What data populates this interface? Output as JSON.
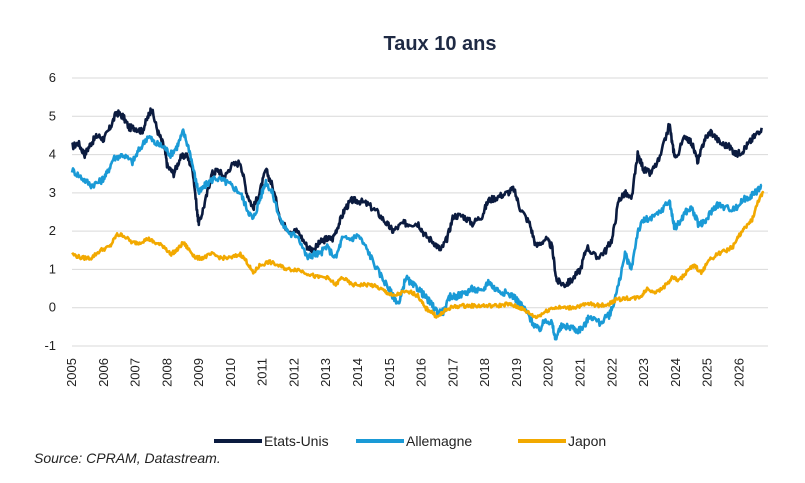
{
  "chart_data": {
    "type": "line",
    "title": "Taux 10 ans",
    "xlabel": "",
    "ylabel": "",
    "xlim": [
      2005.0,
      2026.9
    ],
    "ylim": [
      -1,
      6
    ],
    "yticks": [
      -1,
      0,
      1,
      2,
      3,
      4,
      5,
      6
    ],
    "xticks": [
      "2005",
      "2006",
      "2007",
      "2008",
      "2009",
      "2010",
      "2011",
      "2012",
      "2013",
      "2014",
      "2015",
      "2016",
      "2017",
      "2018",
      "2019",
      "2020",
      "2021",
      "2022",
      "2023",
      "2024",
      "2025",
      "2026"
    ],
    "grid": "horizontal",
    "legend_position": "bottom",
    "series": [
      {
        "name": "Etats-Unis",
        "color": "#0b1b3f",
        "points": [
          [
            2005.0,
            4.2
          ],
          [
            2005.2,
            4.3
          ],
          [
            2005.4,
            4.0
          ],
          [
            2005.6,
            4.3
          ],
          [
            2005.8,
            4.5
          ],
          [
            2006.0,
            4.4
          ],
          [
            2006.2,
            4.7
          ],
          [
            2006.4,
            5.1
          ],
          [
            2006.6,
            5.0
          ],
          [
            2006.8,
            4.7
          ],
          [
            2007.0,
            4.7
          ],
          [
            2007.2,
            4.6
          ],
          [
            2007.4,
            5.0
          ],
          [
            2007.5,
            5.2
          ],
          [
            2007.7,
            4.6
          ],
          [
            2007.9,
            4.2
          ],
          [
            2008.0,
            3.7
          ],
          [
            2008.2,
            3.5
          ],
          [
            2008.4,
            3.9
          ],
          [
            2008.6,
            4.0
          ],
          [
            2008.8,
            3.6
          ],
          [
            2008.95,
            2.4
          ],
          [
            2009.0,
            2.2
          ],
          [
            2009.2,
            2.8
          ],
          [
            2009.4,
            3.5
          ],
          [
            2009.6,
            3.6
          ],
          [
            2009.8,
            3.4
          ],
          [
            2010.0,
            3.7
          ],
          [
            2010.3,
            3.8
          ],
          [
            2010.5,
            3.0
          ],
          [
            2010.7,
            2.6
          ],
          [
            2010.9,
            3.0
          ],
          [
            2011.1,
            3.6
          ],
          [
            2011.3,
            3.2
          ],
          [
            2011.6,
            2.2
          ],
          [
            2011.9,
            2.0
          ],
          [
            2012.1,
            2.0
          ],
          [
            2012.4,
            1.6
          ],
          [
            2012.6,
            1.5
          ],
          [
            2012.8,
            1.7
          ],
          [
            2013.0,
            1.8
          ],
          [
            2013.2,
            1.8
          ],
          [
            2013.4,
            2.2
          ],
          [
            2013.6,
            2.6
          ],
          [
            2013.8,
            2.8
          ],
          [
            2014.0,
            2.8
          ],
          [
            2014.3,
            2.7
          ],
          [
            2014.6,
            2.5
          ],
          [
            2014.9,
            2.2
          ],
          [
            2015.1,
            2.0
          ],
          [
            2015.4,
            2.2
          ],
          [
            2015.6,
            2.2
          ],
          [
            2015.9,
            2.2
          ],
          [
            2016.1,
            1.9
          ],
          [
            2016.4,
            1.7
          ],
          [
            2016.6,
            1.5
          ],
          [
            2016.8,
            1.8
          ],
          [
            2017.0,
            2.4
          ],
          [
            2017.3,
            2.4
          ],
          [
            2017.6,
            2.2
          ],
          [
            2017.9,
            2.4
          ],
          [
            2018.1,
            2.8
          ],
          [
            2018.4,
            2.9
          ],
          [
            2018.7,
            3.0
          ],
          [
            2018.9,
            3.1
          ],
          [
            2019.1,
            2.6
          ],
          [
            2019.4,
            2.2
          ],
          [
            2019.6,
            1.6
          ],
          [
            2019.9,
            1.8
          ],
          [
            2020.1,
            1.6
          ],
          [
            2020.25,
            0.7
          ],
          [
            2020.5,
            0.6
          ],
          [
            2020.7,
            0.7
          ],
          [
            2021.0,
            1.0
          ],
          [
            2021.2,
            1.6
          ],
          [
            2021.5,
            1.3
          ],
          [
            2021.8,
            1.5
          ],
          [
            2022.0,
            1.8
          ],
          [
            2022.2,
            2.8
          ],
          [
            2022.4,
            3.0
          ],
          [
            2022.6,
            2.8
          ],
          [
            2022.8,
            4.0
          ],
          [
            2023.0,
            3.6
          ],
          [
            2023.2,
            3.5
          ],
          [
            2023.5,
            3.9
          ],
          [
            2023.8,
            4.8
          ],
          [
            2023.9,
            4.2
          ],
          [
            2024.0,
            3.9
          ],
          [
            2024.3,
            4.5
          ],
          [
            2024.5,
            4.3
          ],
          [
            2024.7,
            3.8
          ],
          [
            2024.9,
            4.4
          ],
          [
            2025.1,
            4.6
          ],
          [
            2025.4,
            4.3
          ],
          [
            2025.7,
            4.2
          ],
          [
            2025.9,
            4.0
          ],
          [
            2026.1,
            4.1
          ],
          [
            2026.3,
            4.3
          ],
          [
            2026.5,
            4.5
          ],
          [
            2026.7,
            4.7
          ]
        ]
      },
      {
        "name": "Allemagne",
        "color": "#1a9ad6",
        "points": [
          [
            2005.0,
            3.6
          ],
          [
            2005.3,
            3.4
          ],
          [
            2005.6,
            3.2
          ],
          [
            2005.9,
            3.3
          ],
          [
            2006.1,
            3.5
          ],
          [
            2006.3,
            3.9
          ],
          [
            2006.6,
            4.0
          ],
          [
            2006.9,
            3.8
          ],
          [
            2007.1,
            4.1
          ],
          [
            2007.4,
            4.5
          ],
          [
            2007.6,
            4.3
          ],
          [
            2007.9,
            4.2
          ],
          [
            2008.1,
            4.0
          ],
          [
            2008.3,
            4.2
          ],
          [
            2008.5,
            4.6
          ],
          [
            2008.7,
            4.1
          ],
          [
            2008.9,
            3.3
          ],
          [
            2009.0,
            3.0
          ],
          [
            2009.2,
            3.2
          ],
          [
            2009.5,
            3.4
          ],
          [
            2009.8,
            3.3
          ],
          [
            2010.0,
            3.2
          ],
          [
            2010.3,
            3.0
          ],
          [
            2010.5,
            2.6
          ],
          [
            2010.7,
            2.3
          ],
          [
            2010.9,
            2.8
          ],
          [
            2011.1,
            3.3
          ],
          [
            2011.3,
            3.0
          ],
          [
            2011.6,
            2.2
          ],
          [
            2011.9,
            1.9
          ],
          [
            2012.1,
            1.9
          ],
          [
            2012.4,
            1.3
          ],
          [
            2012.6,
            1.4
          ],
          [
            2012.8,
            1.4
          ],
          [
            2013.0,
            1.6
          ],
          [
            2013.3,
            1.3
          ],
          [
            2013.5,
            1.8
          ],
          [
            2013.8,
            1.8
          ],
          [
            2014.0,
            1.9
          ],
          [
            2014.3,
            1.5
          ],
          [
            2014.6,
            1.0
          ],
          [
            2014.9,
            0.6
          ],
          [
            2015.1,
            0.3
          ],
          [
            2015.3,
            0.1
          ],
          [
            2015.5,
            0.8
          ],
          [
            2015.7,
            0.6
          ],
          [
            2015.9,
            0.5
          ],
          [
            2016.1,
            0.3
          ],
          [
            2016.3,
            0.1
          ],
          [
            2016.5,
            -0.1
          ],
          [
            2016.7,
            -0.1
          ],
          [
            2016.9,
            0.3
          ],
          [
            2017.1,
            0.3
          ],
          [
            2017.4,
            0.4
          ],
          [
            2017.6,
            0.5
          ],
          [
            2017.9,
            0.4
          ],
          [
            2018.1,
            0.7
          ],
          [
            2018.3,
            0.5
          ],
          [
            2018.6,
            0.4
          ],
          [
            2018.9,
            0.3
          ],
          [
            2019.1,
            0.1
          ],
          [
            2019.3,
            -0.1
          ],
          [
            2019.5,
            -0.4
          ],
          [
            2019.7,
            -0.6
          ],
          [
            2019.9,
            -0.3
          ],
          [
            2020.1,
            -0.4
          ],
          [
            2020.2,
            -0.8
          ],
          [
            2020.4,
            -0.5
          ],
          [
            2020.7,
            -0.5
          ],
          [
            2020.9,
            -0.6
          ],
          [
            2021.1,
            -0.5
          ],
          [
            2021.3,
            -0.2
          ],
          [
            2021.6,
            -0.4
          ],
          [
            2021.9,
            -0.2
          ],
          [
            2022.0,
            0.0
          ],
          [
            2022.2,
            0.6
          ],
          [
            2022.4,
            1.4
          ],
          [
            2022.6,
            1.0
          ],
          [
            2022.8,
            2.0
          ],
          [
            2023.0,
            2.3
          ],
          [
            2023.2,
            2.3
          ],
          [
            2023.5,
            2.5
          ],
          [
            2023.8,
            2.8
          ],
          [
            2023.95,
            2.1
          ],
          [
            2024.1,
            2.2
          ],
          [
            2024.3,
            2.5
          ],
          [
            2024.5,
            2.6
          ],
          [
            2024.7,
            2.2
          ],
          [
            2024.9,
            2.2
          ],
          [
            2025.1,
            2.5
          ],
          [
            2025.3,
            2.7
          ],
          [
            2025.6,
            2.6
          ],
          [
            2025.9,
            2.6
          ],
          [
            2026.1,
            2.8
          ],
          [
            2026.3,
            2.9
          ],
          [
            2026.5,
            3.0
          ],
          [
            2026.7,
            3.2
          ]
        ]
      },
      {
        "name": "Japon",
        "color": "#f2a900",
        "points": [
          [
            2005.0,
            1.4
          ],
          [
            2005.3,
            1.3
          ],
          [
            2005.6,
            1.3
          ],
          [
            2005.9,
            1.5
          ],
          [
            2006.2,
            1.6
          ],
          [
            2006.4,
            1.9
          ],
          [
            2006.6,
            1.9
          ],
          [
            2006.9,
            1.7
          ],
          [
            2007.1,
            1.7
          ],
          [
            2007.4,
            1.8
          ],
          [
            2007.6,
            1.7
          ],
          [
            2007.9,
            1.6
          ],
          [
            2008.1,
            1.4
          ],
          [
            2008.3,
            1.5
          ],
          [
            2008.5,
            1.7
          ],
          [
            2008.7,
            1.5
          ],
          [
            2008.9,
            1.3
          ],
          [
            2009.1,
            1.3
          ],
          [
            2009.4,
            1.4
          ],
          [
            2009.7,
            1.3
          ],
          [
            2010.0,
            1.3
          ],
          [
            2010.3,
            1.4
          ],
          [
            2010.5,
            1.2
          ],
          [
            2010.7,
            0.9
          ],
          [
            2010.9,
            1.1
          ],
          [
            2011.2,
            1.2
          ],
          [
            2011.5,
            1.1
          ],
          [
            2011.8,
            1.0
          ],
          [
            2012.1,
            1.0
          ],
          [
            2012.4,
            0.9
          ],
          [
            2012.7,
            0.8
          ],
          [
            2013.0,
            0.8
          ],
          [
            2013.3,
            0.6
          ],
          [
            2013.5,
            0.8
          ],
          [
            2013.8,
            0.6
          ],
          [
            2014.1,
            0.6
          ],
          [
            2014.4,
            0.6
          ],
          [
            2014.7,
            0.5
          ],
          [
            2014.9,
            0.4
          ],
          [
            2015.1,
            0.3
          ],
          [
            2015.4,
            0.4
          ],
          [
            2015.7,
            0.4
          ],
          [
            2015.9,
            0.3
          ],
          [
            2016.1,
            0.0
          ],
          [
            2016.3,
            -0.1
          ],
          [
            2016.5,
            -0.25
          ],
          [
            2016.7,
            -0.1
          ],
          [
            2016.9,
            0.0
          ],
          [
            2017.2,
            0.05
          ],
          [
            2017.5,
            0.05
          ],
          [
            2017.8,
            0.05
          ],
          [
            2018.1,
            0.05
          ],
          [
            2018.4,
            0.05
          ],
          [
            2018.7,
            0.1
          ],
          [
            2018.9,
            0.05
          ],
          [
            2019.1,
            0.0
          ],
          [
            2019.3,
            -0.1
          ],
          [
            2019.6,
            -0.25
          ],
          [
            2019.9,
            -0.1
          ],
          [
            2020.1,
            0.0
          ],
          [
            2020.4,
            0.0
          ],
          [
            2020.7,
            0.0
          ],
          [
            2021.0,
            0.05
          ],
          [
            2021.3,
            0.1
          ],
          [
            2021.6,
            0.05
          ],
          [
            2021.9,
            0.1
          ],
          [
            2022.1,
            0.2
          ],
          [
            2022.4,
            0.25
          ],
          [
            2022.7,
            0.25
          ],
          [
            2022.9,
            0.3
          ],
          [
            2023.1,
            0.5
          ],
          [
            2023.4,
            0.4
          ],
          [
            2023.7,
            0.6
          ],
          [
            2023.9,
            0.8
          ],
          [
            2024.1,
            0.7
          ],
          [
            2024.4,
            1.0
          ],
          [
            2024.6,
            1.1
          ],
          [
            2024.8,
            0.9
          ],
          [
            2025.0,
            1.2
          ],
          [
            2025.3,
            1.4
          ],
          [
            2025.6,
            1.5
          ],
          [
            2025.8,
            1.6
          ],
          [
            2026.0,
            1.9
          ],
          [
            2026.2,
            2.1
          ],
          [
            2026.4,
            2.3
          ],
          [
            2026.6,
            2.8
          ],
          [
            2026.75,
            3.0
          ]
        ]
      }
    ]
  },
  "source_text": "Source: CPRAM, Datastream."
}
